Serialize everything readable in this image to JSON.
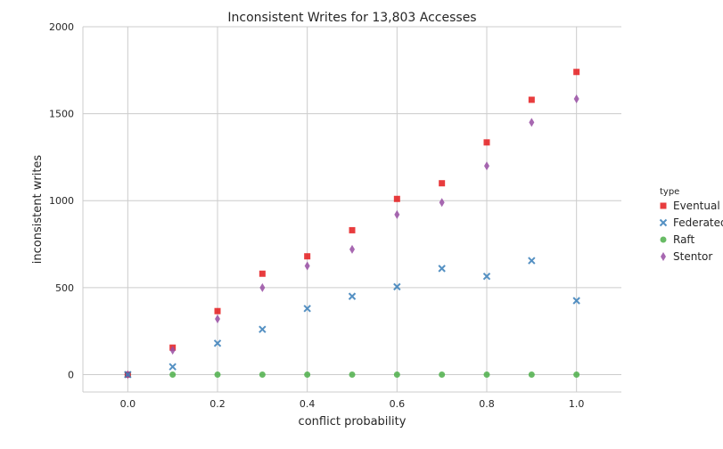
{
  "chart_data": {
    "type": "scatter",
    "title": "Inconsistent Writes for 13,803 Accesses",
    "xlabel": "conflict probability",
    "ylabel": "inconsistent writes",
    "xlim": [
      -0.1,
      1.1
    ],
    "ylim": [
      -100,
      2000
    ],
    "xticks": [
      0.0,
      0.2,
      0.4,
      0.6,
      0.8,
      1.0
    ],
    "xtick_labels": [
      "0.0",
      "0.2",
      "0.4",
      "0.6",
      "0.8",
      "1.0"
    ],
    "yticks": [
      0,
      500,
      1000,
      1500,
      2000
    ],
    "ytick_labels": [
      "0",
      "500",
      "1000",
      "1500",
      "2000"
    ],
    "grid": true,
    "legend": {
      "title": "type",
      "placement": "right"
    },
    "x": [
      0.0,
      0.1,
      0.2,
      0.3,
      0.4,
      0.5,
      0.6,
      0.7,
      0.8,
      0.9,
      1.0
    ],
    "series": [
      {
        "name": "Eventual",
        "marker": "square",
        "color": "#e41a1c",
        "values": [
          0,
          155,
          365,
          580,
          680,
          830,
          1010,
          1100,
          1335,
          1580,
          1740
        ]
      },
      {
        "name": "Federated",
        "marker": "x",
        "color": "#377eb8",
        "values": [
          0,
          45,
          180,
          260,
          380,
          450,
          505,
          610,
          565,
          655,
          425
        ]
      },
      {
        "name": "Raft",
        "marker": "circle",
        "color": "#4daf4a",
        "values": [
          0,
          0,
          0,
          0,
          0,
          0,
          0,
          0,
          0,
          0,
          0
        ]
      },
      {
        "name": "Stentor",
        "marker": "diamond",
        "color": "#984ea3",
        "values": [
          0,
          140,
          320,
          500,
          625,
          720,
          920,
          990,
          1200,
          1450,
          1585
        ]
      }
    ]
  }
}
